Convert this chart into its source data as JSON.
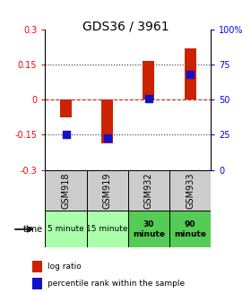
{
  "title": "GDS36 / 3961",
  "samples": [
    "GSM918",
    "GSM919",
    "GSM932",
    "GSM933"
  ],
  "times": [
    "5 minute",
    "15 minute",
    "30\nminute",
    "90\nminute"
  ],
  "time_colors": [
    "#aaffaa",
    "#aaffaa",
    "#55cc55",
    "#55cc55"
  ],
  "sample_bg": "#cccccc",
  "log_ratios": [
    -0.075,
    -0.185,
    0.165,
    0.22
  ],
  "percentile_ranks": [
    25,
    23,
    51,
    68
  ],
  "ylim": [
    -0.3,
    0.3
  ],
  "y_left_ticks": [
    0.3,
    0.15,
    0,
    -0.15,
    -0.3
  ],
  "y_right_ticks": [
    "100%",
    "75",
    "50",
    "25",
    "0"
  ],
  "bar_color": "#cc2200",
  "dot_color": "#1111cc",
  "hline_color": "#cc2200",
  "dotted_color": "#333333",
  "background_color": "#ffffff",
  "title_fontsize": 10,
  "bar_width": 0.28
}
